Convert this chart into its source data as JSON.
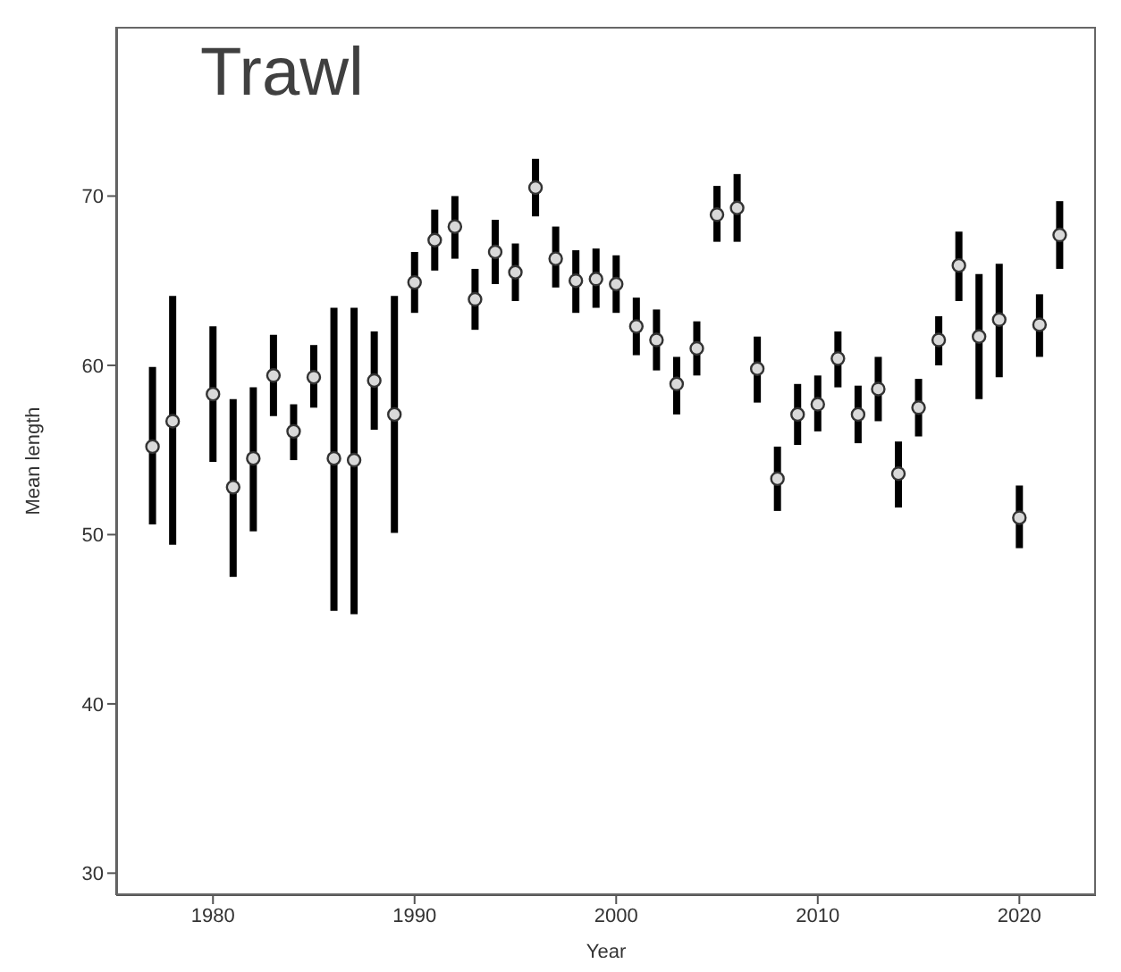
{
  "chart_data": {
    "type": "scatter",
    "title": "Trawl",
    "xlabel": "Year",
    "ylabel": "Mean length",
    "x": [
      1977,
      1978,
      1980,
      1981,
      1982,
      1983,
      1984,
      1985,
      1986,
      1987,
      1988,
      1989,
      1990,
      1991,
      1992,
      1993,
      1994,
      1995,
      1996,
      1997,
      1998,
      1999,
      2000,
      2001,
      2002,
      2003,
      2004,
      2005,
      2006,
      2007,
      2008,
      2009,
      2010,
      2011,
      2012,
      2013,
      2014,
      2015,
      2016,
      2017,
      2018,
      2019,
      2020,
      2021,
      2022
    ],
    "values": [
      55.2,
      56.7,
      58.3,
      52.8,
      54.5,
      59.4,
      56.1,
      59.3,
      54.5,
      54.4,
      59.1,
      57.1,
      64.9,
      67.4,
      68.2,
      63.9,
      66.7,
      65.5,
      70.5,
      66.3,
      65.0,
      65.1,
      64.8,
      62.3,
      61.5,
      58.9,
      61.0,
      68.9,
      69.3,
      59.8,
      53.3,
      57.1,
      57.7,
      60.4,
      57.1,
      58.6,
      53.6,
      57.5,
      61.5,
      65.9,
      61.7,
      62.7,
      51.0,
      62.4,
      67.7
    ],
    "errors": [
      [
        50.6,
        59.9
      ],
      [
        49.4,
        64.1
      ],
      [
        54.3,
        62.3
      ],
      [
        47.5,
        58.0
      ],
      [
        50.2,
        58.7
      ],
      [
        57.0,
        61.8
      ],
      [
        54.4,
        57.7
      ],
      [
        57.5,
        61.2
      ],
      [
        45.5,
        63.4
      ],
      [
        45.3,
        63.4
      ],
      [
        56.2,
        62.0
      ],
      [
        50.1,
        64.1
      ],
      [
        63.1,
        66.7
      ],
      [
        65.6,
        69.2
      ],
      [
        66.3,
        70.0
      ],
      [
        62.1,
        65.7
      ],
      [
        64.8,
        68.6
      ],
      [
        63.8,
        67.2
      ],
      [
        68.8,
        72.2
      ],
      [
        64.6,
        68.2
      ],
      [
        63.1,
        66.8
      ],
      [
        63.4,
        66.9
      ],
      [
        63.1,
        66.5
      ],
      [
        60.6,
        64.0
      ],
      [
        59.7,
        63.3
      ],
      [
        57.1,
        60.5
      ],
      [
        59.4,
        62.6
      ],
      [
        67.3,
        70.6
      ],
      [
        67.3,
        71.3
      ],
      [
        57.8,
        61.7
      ],
      [
        51.4,
        55.2
      ],
      [
        55.3,
        58.9
      ],
      [
        56.1,
        59.4
      ],
      [
        58.7,
        62.0
      ],
      [
        55.4,
        58.8
      ],
      [
        56.7,
        60.5
      ],
      [
        51.6,
        55.5
      ],
      [
        55.8,
        59.2
      ],
      [
        60.0,
        62.9
      ],
      [
        63.8,
        67.9
      ],
      [
        58.0,
        65.4
      ],
      [
        59.3,
        66.0
      ],
      [
        49.2,
        52.9
      ],
      [
        60.5,
        64.2
      ],
      [
        65.7,
        69.7
      ]
    ],
    "color": "#d9d9d9",
    "marker": "circle",
    "xlim": [
      1975.2,
      2023.8
    ],
    "xticks": [
      1980,
      1990,
      2000,
      2010,
      2020
    ],
    "ylim": [
      28.7,
      80
    ],
    "yticks": [
      30,
      40,
      50,
      60,
      70
    ],
    "grid": false,
    "legend": false
  }
}
